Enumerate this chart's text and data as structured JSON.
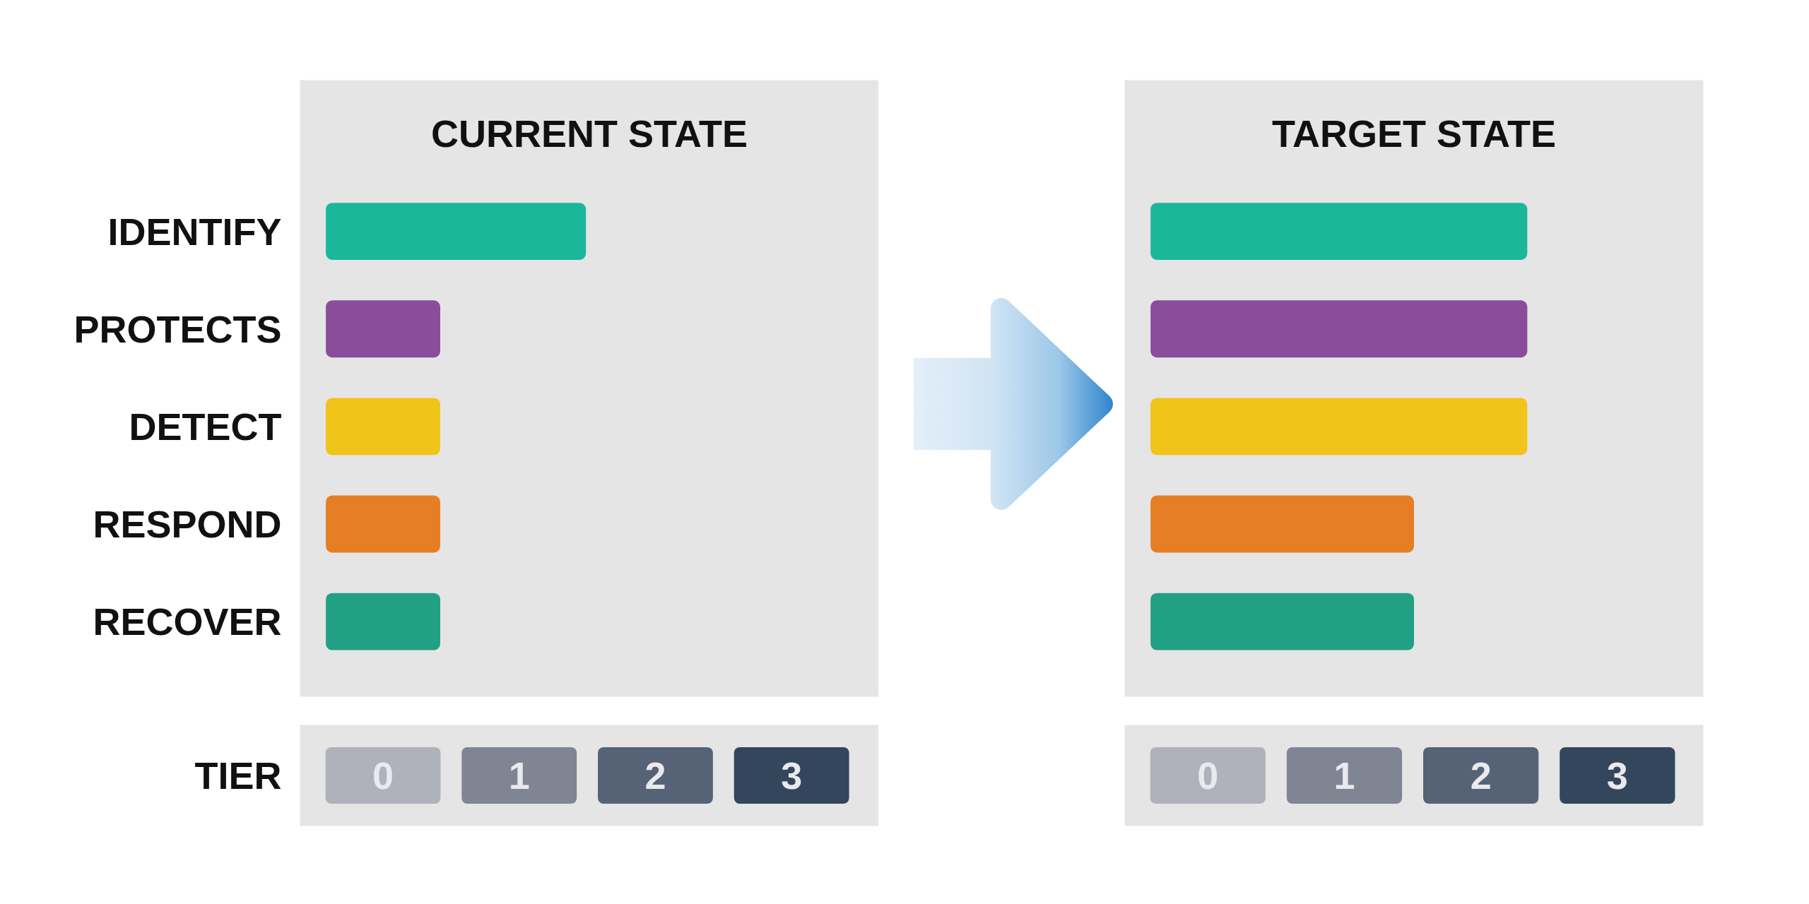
{
  "chart_data": [
    {
      "type": "bar",
      "orientation": "horizontal",
      "title": "CURRENT STATE",
      "xlabel": "TIER",
      "categories": [
        "IDENTIFY",
        "PROTECTS",
        "DETECT",
        "RESPOND",
        "RECOVER"
      ],
      "values": [
        1.91,
        0.84,
        0.84,
        0.84,
        0.84
      ],
      "colors": [
        "#1bb79b",
        "#8a4d9b",
        "#f0c419",
        "#e67e25",
        "#22a083"
      ],
      "xlim": [
        -0.19,
        4.06
      ],
      "xticks": [
        {
          "value": 0.42,
          "label": "0"
        },
        {
          "value": 1.42,
          "label": "1"
        },
        {
          "value": 2.42,
          "label": "2"
        },
        {
          "value": 3.42,
          "label": "3"
        }
      ]
    },
    {
      "type": "bar",
      "orientation": "horizontal",
      "title": "TARGET STATE",
      "categories": [
        null,
        null,
        null,
        null,
        null
      ],
      "values": [
        2.76,
        2.76,
        2.76,
        1.93,
        1.93
      ],
      "colors": [
        "#1bb79b",
        "#8a4d9b",
        "#f0c419",
        "#e67e25",
        "#22a083"
      ],
      "xlim": [
        -0.19,
        4.05
      ],
      "xticks": [
        {
          "value": 0.42,
          "label": "0"
        },
        {
          "value": 1.42,
          "label": "1"
        },
        {
          "value": 2.42,
          "label": "2"
        },
        {
          "value": 3.42,
          "label": "3"
        }
      ],
      "tick_labels": "x"
    }
  ]
}
